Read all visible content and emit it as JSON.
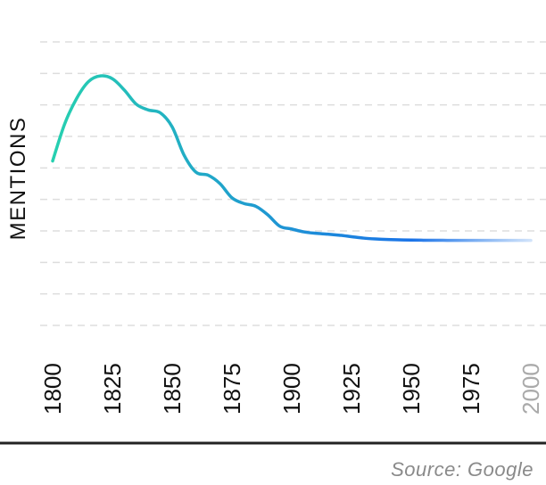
{
  "chart_data": {
    "type": "line",
    "title": "",
    "ylabel": "MENTIONS",
    "xlabel": "",
    "x_ticks": [
      "1800",
      "1825",
      "1850",
      "1875",
      "1900",
      "1925",
      "1950",
      "1975",
      "2000"
    ],
    "x": [
      1800,
      1805,
      1810,
      1815,
      1820,
      1825,
      1830,
      1835,
      1840,
      1845,
      1850,
      1855,
      1860,
      1865,
      1870,
      1875,
      1880,
      1885,
      1890,
      1895,
      1900,
      1905,
      1910,
      1915,
      1920,
      1925,
      1930,
      1935,
      1940,
      1945,
      1950,
      1955,
      1960,
      1965,
      1970,
      1975,
      1980,
      1985,
      1990,
      1995,
      2000
    ],
    "y": [
      58,
      71,
      80,
      86,
      88,
      87,
      83,
      78,
      76,
      75,
      70,
      60,
      54,
      53,
      50,
      45,
      43,
      42,
      39,
      35,
      34,
      33,
      32.5,
      32.2,
      31.8,
      31.3,
      30.8,
      30.5,
      30.3,
      30.2,
      30.1,
      30.05,
      30.02,
      30.01,
      30,
      30,
      30,
      30,
      30,
      30,
      30
    ],
    "xlim": [
      1800,
      2000
    ],
    "ylim": [
      0,
      100
    ],
    "grid": true,
    "colors": {
      "line_start": "#26d0b0",
      "line_end": "#1a73e8",
      "grid": "#dddddd",
      "tick_label": "#111111",
      "tick_label_faded": "#aaaaaa",
      "baseline": "#222222",
      "source_text": "#8a8a8a"
    }
  },
  "source": "Source: Google"
}
